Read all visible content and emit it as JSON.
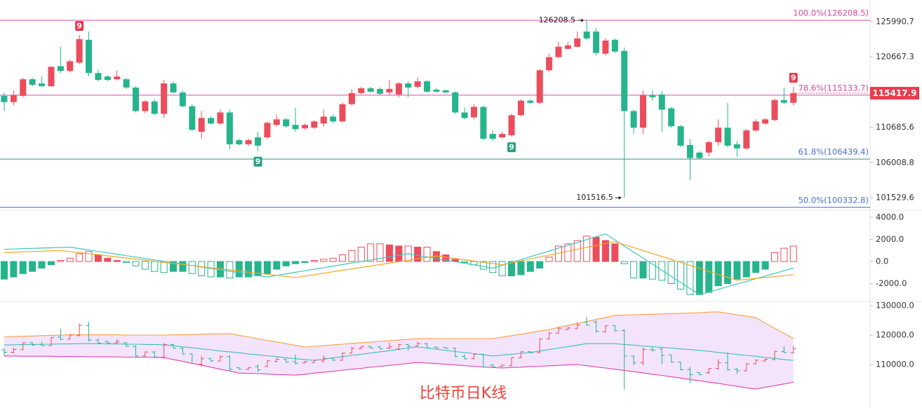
{
  "title": "比特币日K线",
  "chart_data": [
    {
      "type": "candlestick",
      "log": true,
      "ylim": [
        99967,
        129395
      ],
      "yticks": [
        125990.7,
        120667.3,
        110685.6,
        106008.8,
        101529.6
      ],
      "up_color": "#eb4d5c",
      "down_color": "#26b48c",
      "open": [
        115036,
        114161,
        115036,
        117404,
        116807,
        116413,
        119310,
        118605,
        119821,
        123225,
        118305,
        117802,
        117404,
        117404,
        116216,
        112909,
        114258,
        112528,
        116807,
        115526,
        113583,
        110071,
        111955,
        111198,
        112718,
        108956,
        108403,
        109326,
        109326,
        111009,
        111766,
        111009,
        110540,
        110634,
        111198,
        112146,
        111482,
        113871,
        115428,
        116117,
        116018,
        115526,
        115232,
        116807,
        116315,
        117106,
        115919,
        115820,
        115526,
        112718,
        112050,
        113487,
        109791,
        109326,
        109605,
        112338,
        114355,
        114064,
        118705,
        120640,
        121869,
        122180,
        124480,
        124480,
        121150,
        123225,
        121560,
        112909,
        110634,
        115134,
        115232,
        113295,
        110822,
        108311,
        107304,
        107304,
        108680,
        110634,
        108403,
        107853,
        110258,
        111198,
        111672,
        114452,
        114064
      ],
      "high": [
        115526,
        115820,
        117600,
        117600,
        117802,
        119310,
        122180,
        120330,
        123948,
        124480,
        118806,
        118000,
        118705,
        117600,
        116413,
        114452,
        114550,
        117305,
        117106,
        115820,
        113871,
        112909,
        112240,
        113102,
        113102,
        109141,
        109141,
        110071,
        111482,
        112430,
        111955,
        113391,
        111198,
        111672,
        113102,
        112430,
        114064,
        116018,
        116315,
        116315,
        116216,
        117305,
        117000,
        117106,
        117702,
        117305,
        116117,
        115919,
        115722,
        113391,
        113871,
        113679,
        110258,
        110071,
        112528,
        114550,
        114550,
        118900,
        121150,
        122917,
        122917,
        124480,
        126208.5,
        125019,
        123430,
        123430,
        122075,
        113102,
        115820,
        115820,
        115722,
        113487,
        111009,
        109141,
        107488,
        108864,
        111766,
        114064,
        108864,
        110446,
        111766,
        111955,
        114650,
        116216,
        116315
      ],
      "low": [
        112909,
        113679,
        114841,
        116413,
        116315,
        116315,
        118305,
        118400,
        119620,
        117802,
        117106,
        117106,
        117206,
        116018,
        112718,
        112620,
        112338,
        111955,
        115428,
        113391,
        110160,
        109141,
        111009,
        111009,
        107762,
        108219,
        108219,
        107488,
        109141,
        110822,
        110634,
        110071,
        110352,
        110446,
        110728,
        111198,
        111293,
        113679,
        115232,
        115428,
        115134,
        115134,
        114841,
        114841,
        116117,
        115428,
        115526,
        115428,
        112528,
        111766,
        111766,
        108956,
        108864,
        109141,
        109420,
        112146,
        113871,
        113871,
        118500,
        120430,
        121760,
        122080,
        123225,
        120843,
        120843,
        121250,
        101516.5,
        109791,
        109791,
        114355,
        110071,
        110634,
        108036,
        103720,
        106398,
        106760,
        108219,
        107945,
        106760,
        107670,
        110071,
        111009,
        111482,
        113871,
        113679
      ],
      "close": [
        114161,
        115134,
        117404,
        116610,
        116413,
        119210,
        118605,
        120025,
        123330,
        118305,
        117305,
        117305,
        117802,
        116216,
        112909,
        114258,
        112528,
        116807,
        115526,
        113583,
        110352,
        111955,
        111198,
        112718,
        108403,
        108403,
        108956,
        108219,
        111293,
        111766,
        110822,
        110446,
        111009,
        111482,
        112146,
        111482,
        113871,
        115428,
        116117,
        115624,
        115330,
        116018,
        116807,
        116216,
        117106,
        115624,
        115624,
        115526,
        112718,
        111955,
        113487,
        109141,
        109141,
        109791,
        112338,
        114355,
        114064,
        118705,
        120640,
        122180,
        122390,
        123430,
        123430,
        121250,
        123120,
        121460,
        112909,
        110634,
        115134,
        114841,
        113102,
        110822,
        108219,
        106579,
        106579,
        108680,
        110634,
        108219,
        107853,
        110258,
        111482,
        111766,
        114452,
        114064,
        115417.9
      ],
      "fib_levels": [
        {
          "label": "100.0%(126208.5)",
          "value": 126208.5,
          "line_color": "#d94bb0",
          "text_color": "#d9479e"
        },
        {
          "label": "78.6%(115133.7)",
          "value": 115133.7,
          "line_color": "#d94bb0",
          "text_color": "#d9479e"
        },
        {
          "label": "61.8%(106439.4)",
          "value": 106439.4,
          "line_color": "#2f8f8f",
          "text_color": "#4a6fd0"
        },
        {
          "label": "50.0%(100332.8)",
          "value": 100332.8,
          "line_color": "#4b5fd4",
          "text_color": "#4a6fd0"
        }
      ],
      "annotations": [
        {
          "index": 8,
          "text": "9",
          "position": "above"
        },
        {
          "index": 27,
          "text": "9",
          "position": "below"
        },
        {
          "index": 54,
          "text": "9",
          "position": "below"
        },
        {
          "index": 84,
          "text": "9",
          "position": "above"
        }
      ]
    },
    {
      "type": "macd",
      "ylim": [
        -3619,
        4635
      ],
      "yticks": [
        {
          "value": 4000,
          "label": "4000.0"
        },
        {
          "value": 2000,
          "label": "2000.0"
        },
        {
          "value": 0,
          "label": "0.0"
        },
        {
          "value": -2000,
          "label": "-2000.0"
        }
      ],
      "histogram": [
        -1600,
        -1400,
        -1100,
        -900,
        -600,
        -300,
        100,
        300,
        700,
        900,
        600,
        300,
        100,
        -100,
        -400,
        -700,
        -900,
        -1000,
        -900,
        -900,
        -1100,
        -1300,
        -1400,
        -1400,
        -1500,
        -1400,
        -1400,
        -1300,
        -1100,
        -700,
        -400,
        -200,
        -100,
        100,
        200,
        300,
        600,
        1000,
        1300,
        1600,
        1600,
        1500,
        1400,
        1400,
        1300,
        1300,
        900,
        600,
        200,
        -100,
        -300,
        -700,
        -1000,
        -1300,
        -1300,
        -1200,
        -900,
        -600,
        400,
        1400,
        1600,
        1900,
        2300,
        2200,
        1900,
        1600,
        -200,
        -1500,
        -1500,
        -1600,
        -1700,
        -2000,
        -2500,
        -3000,
        -3000,
        -2800,
        -2200,
        -2000,
        -1600,
        -1400,
        -1000,
        -700,
        800,
        1200,
        1400
      ],
      "series": [
        {
          "color": "#3cc7c0",
          "values": [
            1100,
            1130,
            1160,
            1190,
            1210,
            1240,
            1270,
            1300,
            1170,
            1040,
            910,
            790,
            660,
            530,
            400,
            270,
            140,
            10,
            -110,
            -240,
            -370,
            -500,
            -630,
            -760,
            -890,
            -1010,
            -1140,
            -1270,
            -1400,
            -1260,
            -1120,
            -980,
            -840,
            -700,
            -560,
            -420,
            -280,
            -140,
            0,
            140,
            280,
            420,
            560,
            700,
            560,
            410,
            270,
            120,
            -20,
            -170,
            -310,
            -460,
            -600,
            -340,
            -80,
            170,
            430,
            690,
            950,
            1210,
            1470,
            1720,
            1980,
            2240,
            2500,
            1950,
            1400,
            850,
            300,
            -250,
            -800,
            -1350,
            -1900,
            -2450,
            -3000,
            -2760,
            -2520,
            -2280,
            -2040,
            -1800,
            -1560,
            -1320,
            -1080,
            -840,
            -600
          ]
        },
        {
          "color": "#f5a623",
          "values": [
            800,
            830,
            870,
            900,
            930,
            970,
            1000,
            900,
            800,
            710,
            610,
            510,
            410,
            310,
            220,
            120,
            20,
            -80,
            -180,
            -270,
            -370,
            -470,
            -570,
            -670,
            -760,
            -860,
            -960,
            -1060,
            -1160,
            -1250,
            -1350,
            -1450,
            -1320,
            -1190,
            -1060,
            -930,
            -800,
            -670,
            -540,
            -410,
            -280,
            -150,
            -20,
            110,
            240,
            370,
            500,
            390,
            270,
            160,
            40,
            -70,
            -190,
            -300,
            -130,
            50,
            230,
            400,
            580,
            750,
            930,
            1100,
            1280,
            1450,
            1630,
            1800,
            1530,
            1260,
            990,
            720,
            460,
            190,
            -80,
            -350,
            -620,
            -890,
            -1160,
            -1430,
            -1700,
            -1620,
            -1530,
            -1450,
            -1370,
            -1280,
            -1200
          ]
        }
      ]
    },
    {
      "type": "bollinger",
      "ylim": [
        98095,
        131429
      ],
      "yticks": [
        {
          "value": 130000,
          "label": "130000.0"
        },
        {
          "value": 120000,
          "label": "120000.0"
        },
        {
          "value": 110000,
          "label": "110000.0"
        }
      ],
      "fill_color": "#f3e4fb",
      "series": [
        {
          "color": "#f5a040",
          "values": [
            119400,
            119500,
            119600,
            119700,
            119800,
            119900,
            120000,
            120100,
            120100,
            120100,
            120100,
            120100,
            120100,
            120000,
            120000,
            120000,
            120000,
            120000,
            120100,
            120100,
            120200,
            120300,
            120400,
            120400,
            120500,
            119900,
            119400,
            118800,
            118200,
            117700,
            117100,
            116500,
            115950,
            116200,
            116400,
            116700,
            116900,
            117200,
            117400,
            117600,
            117900,
            118100,
            118300,
            118600,
            118800,
            118800,
            118800,
            118800,
            118800,
            118800,
            118800,
            118800,
            118800,
            119300,
            119800,
            120300,
            120800,
            121400,
            121900,
            122600,
            123300,
            123900,
            124600,
            125300,
            126000,
            126700,
            126800,
            126900,
            127000,
            127100,
            127200,
            127300,
            127400,
            127500,
            127600,
            127800,
            127900,
            127400,
            126900,
            126400,
            125900,
            124100,
            122300,
            120600,
            118800
          ]
        },
        {
          "color": "#3cbfc0",
          "values": [
            116700,
            116700,
            116800,
            116800,
            116900,
            116900,
            117000,
            117000,
            117100,
            117100,
            117100,
            117000,
            117000,
            116900,
            116900,
            116800,
            116800,
            116700,
            116400,
            116000,
            115700,
            115300,
            115000,
            114600,
            114300,
            114000,
            113600,
            113300,
            113000,
            112700,
            112300,
            112000,
            111700,
            111400,
            111800,
            112300,
            112700,
            113100,
            113500,
            113900,
            114300,
            114700,
            115200,
            115600,
            116000,
            115600,
            115200,
            114800,
            114400,
            114100,
            113700,
            113300,
            112900,
            113200,
            113500,
            113800,
            114100,
            114600,
            115100,
            115600,
            116100,
            116600,
            117100,
            117100,
            117100,
            117100,
            116800,
            116600,
            116300,
            116100,
            115800,
            115600,
            115300,
            115100,
            114800,
            114500,
            114100,
            113800,
            113400,
            113100,
            112800,
            112400,
            112100,
            111700,
            111400
          ]
        },
        {
          "color": "#e03fb0",
          "values": [
            112900,
            112900,
            112800,
            112800,
            112800,
            112800,
            112700,
            112700,
            112700,
            112600,
            112600,
            112600,
            112600,
            112500,
            112500,
            112500,
            112400,
            112400,
            111700,
            111100,
            110400,
            109800,
            109100,
            108400,
            107800,
            107100,
            107000,
            106900,
            106800,
            106600,
            106500,
            106400,
            106700,
            107100,
            107400,
            107700,
            108100,
            108400,
            108700,
            109100,
            109400,
            109700,
            110000,
            110400,
            110700,
            110500,
            110300,
            110100,
            109900,
            109600,
            109400,
            109200,
            109000,
            108800,
            109000,
            109100,
            109300,
            109400,
            109600,
            109700,
            109900,
            110000,
            109600,
            109200,
            108800,
            108400,
            108000,
            107600,
            107200,
            106700,
            106300,
            105800,
            105400,
            104900,
            104500,
            104000,
            103600,
            103100,
            102600,
            102100,
            101700,
            102300,
            102800,
            103400,
            104000
          ]
        }
      ]
    }
  ]
}
